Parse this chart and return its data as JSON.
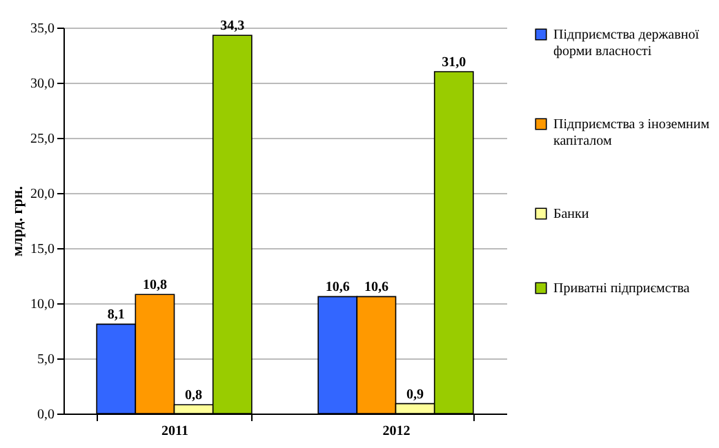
{
  "chart_data": {
    "type": "bar",
    "categories": [
      "2011",
      "2012"
    ],
    "ylabel": "млрд. грн.",
    "series": [
      {
        "name": "Підприємства державної форми власності",
        "color": "#3366ff",
        "values": [
          8.1,
          10.6
        ],
        "value_labels": [
          "8,1",
          "10,6"
        ]
      },
      {
        "name": "Підприємства з іноземним капіталом",
        "color": "#ff9900",
        "values": [
          10.8,
          10.6
        ],
        "value_labels": [
          "10,8",
          "10,6"
        ]
      },
      {
        "name": "Банки",
        "color": "#ffff99",
        "values": [
          0.8,
          0.9
        ],
        "value_labels": [
          "0,8",
          "0,9"
        ]
      },
      {
        "name": "Приватні підприємства",
        "color": "#99cc00",
        "values": [
          34.3,
          31.0
        ],
        "value_labels": [
          "34,3",
          "31,0"
        ]
      }
    ],
    "ylim": [
      0,
      35
    ],
    "yticks": [
      {
        "value": 0,
        "label": "0,0"
      },
      {
        "value": 5,
        "label": "5,0"
      },
      {
        "value": 10,
        "label": "10,0"
      },
      {
        "value": 15,
        "label": "15,0"
      },
      {
        "value": 20,
        "label": "20,0"
      },
      {
        "value": 25,
        "label": "25,0"
      },
      {
        "value": 30,
        "label": "30,0"
      },
      {
        "value": 35,
        "label": "35,0"
      }
    ],
    "grid": "y",
    "legend": "right"
  }
}
